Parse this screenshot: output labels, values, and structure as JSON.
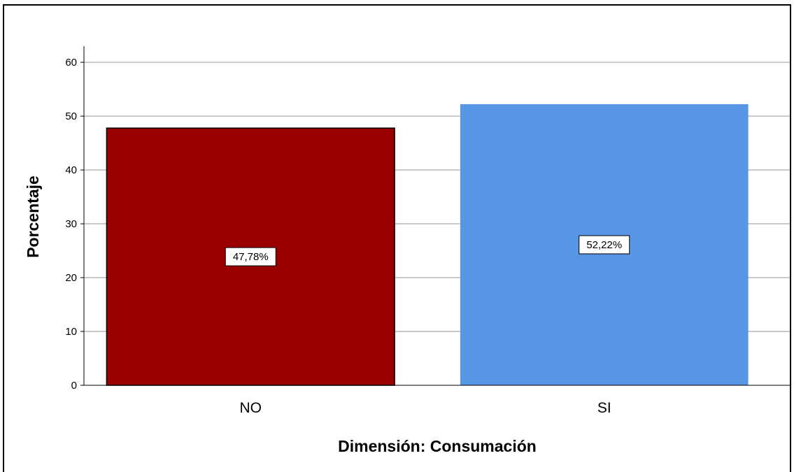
{
  "chart_data": {
    "type": "bar",
    "categories": [
      "NO",
      "SI"
    ],
    "values": [
      47.78,
      52.22
    ],
    "data_labels": [
      "47,78%",
      "52,22%"
    ],
    "xlabel": "Dimensión: Consumación",
    "ylabel": "Porcentaje",
    "ylim": [
      0,
      63
    ],
    "yticks": [
      0,
      10,
      20,
      30,
      40,
      50,
      60
    ],
    "grid": true,
    "legend": "none",
    "colors": [
      "#990000",
      "#5696E5"
    ]
  }
}
